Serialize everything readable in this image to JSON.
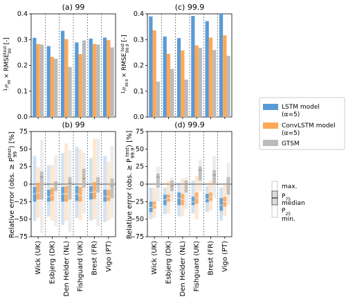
{
  "colors": {
    "lstm": "#5b9bd5",
    "convlstm": "#ffa857",
    "gtsm": "#bbbbbb"
  },
  "legend": {
    "entries": [
      {
        "label_line1": "LSTM model",
        "label_line2": "(α=5)",
        "color": "#5b9bd5"
      },
      {
        "label_line1": "ConvLSTM model",
        "label_line2": "(α=5)",
        "color": "#ffa857"
      },
      {
        "label_line1": "GTSM",
        "label_line2": "",
        "color": "#bbbbbb"
      }
    ]
  },
  "boxkey": {
    "max": "max.",
    "p75": "P",
    "p75_sub": "75",
    "median": "median",
    "p25": "P",
    "p25_sub": "25",
    "min": "min."
  },
  "chart_data": [
    {
      "type": "bar",
      "title": "(a) 99",
      "ylabel": "1/P99 × RMSE99 [-]",
      "ylim": [
        0,
        0.4
      ],
      "yticks": [
        "0.0",
        "0.1",
        "0.2",
        "0.3",
        "0.4"
      ],
      "categories": [
        "Wick (UK)",
        "Esbjerg (DK)",
        "Den Helder (NL)",
        "Fishguard (UK)",
        "Brest (FR)",
        "Vigo (PT)"
      ],
      "series": [
        {
          "name": "LSTM model (α=5)",
          "values": [
            0.307,
            0.275,
            0.334,
            0.289,
            0.304,
            0.308
          ]
        },
        {
          "name": "ConvLSTM model (α=5)",
          "values": [
            0.283,
            0.233,
            0.302,
            0.244,
            0.283,
            0.298
          ]
        },
        {
          "name": "GTSM",
          "values": [
            0.281,
            0.226,
            0.194,
            0.297,
            0.281,
            0.27
          ]
        }
      ]
    },
    {
      "type": "bar",
      "title": "(c) 99.9",
      "ylabel": "1/P99.9 × RMSE99.9 [-]",
      "ylim": [
        0,
        0.4
      ],
      "yticks": [
        "0.0",
        "0.1",
        "0.2",
        "0.3",
        "0.4"
      ],
      "categories": [
        "Wick (UK)",
        "Esbjerg (DK)",
        "Den Helder (NL)",
        "Fishguard (UK)",
        "Brest (FR)",
        "Vigo (PT)"
      ],
      "series": [
        {
          "name": "LSTM model (α=5)",
          "values": [
            0.39,
            0.312,
            0.306,
            0.392,
            0.372,
            0.4
          ]
        },
        {
          "name": "ConvLSTM model (α=5)",
          "values": [
            0.336,
            0.245,
            0.258,
            0.278,
            0.308,
            0.317
          ]
        },
        {
          "name": "GTSM",
          "values": [
            0.137,
            0.186,
            0.145,
            0.268,
            0.26,
            0.237
          ]
        }
      ]
    },
    {
      "type": "box",
      "title": "(b) 99",
      "ylabel": "Relative error (obs. ≥ P99) [%]",
      "ylim": [
        -75,
        75
      ],
      "yticks": [
        "75",
        "50",
        "25",
        "0",
        "−25",
        "−50",
        "−75"
      ],
      "categories": [
        "Wick (UK)",
        "Esbjerg (DK)",
        "Den Helder (NL)",
        "Fishguard (UK)",
        "Brest (FR)",
        "Vigo (PT)"
      ],
      "series": [
        {
          "name": "LSTM model (α=5)",
          "stats": [
            {
              "min": -52,
              "p25": -25,
              "median": -14,
              "p75": -4,
              "max": 40
            },
            {
              "min": -46,
              "p25": -25,
              "median": -18,
              "p75": -8,
              "max": 27
            },
            {
              "min": -58,
              "p25": -25,
              "median": -14,
              "p75": -4,
              "max": 44
            },
            {
              "min": -48,
              "p25": -24,
              "median": -14,
              "p75": -3,
              "max": 53
            },
            {
              "min": -52,
              "p25": -22,
              "median": -12,
              "p75": -3,
              "max": 37
            },
            {
              "min": -54,
              "p25": -25,
              "median": -17,
              "p75": -8,
              "max": 40
            }
          ]
        },
        {
          "name": "ConvLSTM model (α=5)",
          "stats": [
            {
              "min": -48,
              "p25": -22,
              "median": -12,
              "p75": 2,
              "max": 24
            },
            {
              "min": -52,
              "p25": -24,
              "median": -16,
              "p75": -5,
              "max": 27
            },
            {
              "min": -52,
              "p25": -25,
              "median": -14,
              "p75": -3,
              "max": 58
            },
            {
              "min": -52,
              "p25": -25,
              "median": -16,
              "p75": -4,
              "max": 50
            },
            {
              "min": -50,
              "p25": -21,
              "median": -11,
              "p75": 3,
              "max": 65
            },
            {
              "min": -52,
              "p25": -24,
              "median": -18,
              "p75": -8,
              "max": 32
            }
          ]
        },
        {
          "name": "GTSM",
          "stats": [
            {
              "min": -70,
              "p25": -22,
              "median": 10,
              "p75": 18,
              "max": 63
            },
            {
              "min": -60,
              "p25": -10,
              "median": 0,
              "p75": 4,
              "max": 41
            },
            {
              "min": -68,
              "p25": -22,
              "median": 1,
              "p75": 10,
              "max": 48
            },
            {
              "min": -42,
              "p25": -5,
              "median": 8,
              "p75": 22,
              "max": 45
            },
            {
              "min": -60,
              "p25": -12,
              "median": 0,
              "p75": 10,
              "max": 64
            },
            {
              "min": -48,
              "p25": -20,
              "median": -2,
              "p75": 8,
              "max": 55
            }
          ]
        }
      ]
    },
    {
      "type": "box",
      "title": "(d) 99.9",
      "ylabel": "Relative error (obs. ≥ P99.9) [%]",
      "ylim": [
        -75,
        75
      ],
      "yticks": [
        "75",
        "50",
        "25",
        "0",
        "−25",
        "−50",
        "−75"
      ],
      "categories": [
        "Wick (UK)",
        "Esbjerg (DK)",
        "Den Helder (NL)",
        "Fishguard (UK)",
        "Brest (FR)",
        "Vigo (PT)"
      ],
      "series": [
        {
          "name": "LSTM model (α=5)",
          "stats": [
            {
              "min": -50,
              "p25": -40,
              "median": -33,
              "p75": -25,
              "max": -5
            },
            {
              "min": -43,
              "p25": -30,
              "median": -22,
              "p75": -15,
              "max": -5
            },
            {
              "min": -46,
              "p25": -30,
              "median": -20,
              "p75": -12,
              "max": 2
            },
            {
              "min": -42,
              "p25": -30,
              "median": -25,
              "p75": -18,
              "max": 5
            },
            {
              "min": -40,
              "p25": -26,
              "median": -21,
              "p75": -14,
              "max": -3
            },
            {
              "min": -52,
              "p25": -38,
              "median": -30,
              "p75": -20,
              "max": -5
            }
          ]
        },
        {
          "name": "ConvLSTM model (α=5)",
          "stats": [
            {
              "min": -48,
              "p25": -35,
              "median": -30,
              "p75": -25,
              "max": -5
            },
            {
              "min": -42,
              "p25": -25,
              "median": -20,
              "p75": -15,
              "max": 5
            },
            {
              "min": -45,
              "p25": -30,
              "median": -22,
              "p75": -14,
              "max": 8
            },
            {
              "min": -50,
              "p25": -28,
              "median": -20,
              "p75": -12,
              "max": 12
            },
            {
              "min": -38,
              "p25": -24,
              "median": -18,
              "p75": -12,
              "max": 5
            },
            {
              "min": -45,
              "p25": -32,
              "median": -25,
              "p75": -18,
              "max": 2
            }
          ]
        },
        {
          "name": "GTSM",
          "stats": [
            {
              "min": -25,
              "p25": -5,
              "median": 10,
              "p75": 15,
              "max": 25
            },
            {
              "min": -25,
              "p25": -10,
              "median": -2,
              "p75": 5,
              "max": 10
            },
            {
              "min": -35,
              "p25": -12,
              "median": 0,
              "p75": 5,
              "max": 10
            },
            {
              "min": -10,
              "p25": 5,
              "median": 20,
              "p75": 25,
              "max": 35
            },
            {
              "min": -20,
              "p25": 0,
              "median": 13,
              "p75": 20,
              "max": 40
            },
            {
              "min": -30,
              "p25": -15,
              "median": 0,
              "p75": 10,
              "max": 30
            }
          ]
        }
      ]
    }
  ]
}
